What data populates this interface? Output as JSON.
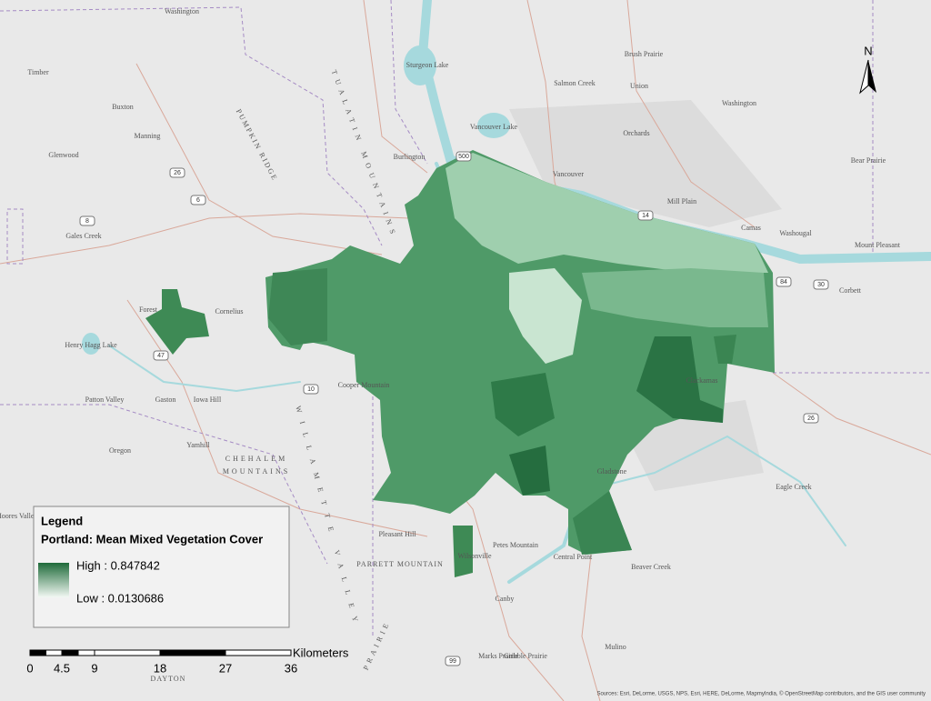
{
  "places": [
    "Washington",
    "Timber",
    "Buxton",
    "Manning",
    "Glenwood",
    "PUMPKIN RIDGE",
    "TUALATIN MOUNTAINS",
    "Burlington",
    "Sturgeon Lake",
    "Vancouver Lake",
    "Salmon Creek",
    "Brush Prairie",
    "Union",
    "Orchards",
    "Washington",
    "Vancouver",
    "Bear Prairie",
    "Mill Plain",
    "Camas",
    "Washougal",
    "Mount Pleasant",
    "Corbett",
    "Gales Creek",
    "Forest",
    "Cornelius",
    "Henry Hagg Lake",
    "Patton Valley",
    "Gaston",
    "Iowa Hill",
    "Cooper Mountain",
    "Oregon",
    "Yamhill",
    "CHEHALEM",
    "MOUNTAINS",
    "Clackamas",
    "Gladstone",
    "Eagle Creek",
    "Moores Valley",
    "Pleasant Hill",
    "Petes Mountain",
    "PARRETT MOUNTAIN",
    "Wilsonville",
    "Central Point",
    "Beaver Creek",
    "Canby",
    "Marks Prairie",
    "Gribble Prairie",
    "Mulino",
    "DAYTON",
    "WILLAMETTE VALLEY",
    "PRAIRIE"
  ],
  "highways": [
    "26",
    "6",
    "8",
    "500",
    "14",
    "84",
    "30",
    "47",
    "10",
    "26",
    "99"
  ],
  "north": "N",
  "legend": {
    "heading": "Legend",
    "layer": "Portland: Mean Mixed Vegetation Cover",
    "high": "High : 0.847842",
    "low": "Low : 0.0130686"
  },
  "scale_bar": {
    "labels": [
      "0",
      "4.5",
      "9",
      "18",
      "27",
      "36"
    ],
    "unit": "Kilometers"
  },
  "attribution": "Sources: Esri, DeLorme, USGS, NPS, Esri, HERE, DeLorme, MapmyIndia, © OpenStreetMap contributors, and the GIS user community"
}
